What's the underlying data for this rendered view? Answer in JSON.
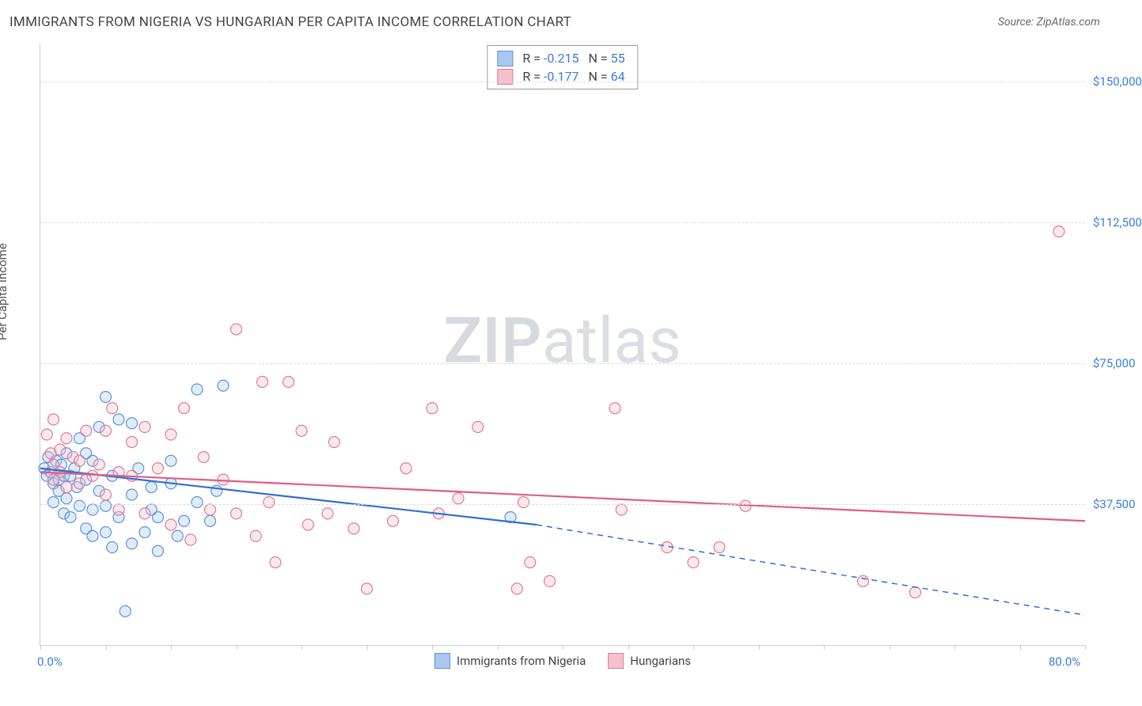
{
  "title": "IMMIGRANTS FROM NIGERIA VS HUNGARIAN PER CAPITA INCOME CORRELATION CHART",
  "source_prefix": "Source: ",
  "source_name": "ZipAtlas.com",
  "y_axis_title": "Per Capita Income",
  "watermark_zip": "ZIP",
  "watermark_atlas": "atlas",
  "chart": {
    "type": "scatter",
    "xlim": [
      0,
      80
    ],
    "ylim": [
      0,
      160000
    ],
    "x_axis_labels": [
      {
        "value": 0,
        "label": "0.0%"
      },
      {
        "value": 80,
        "label": "80.0%"
      }
    ],
    "x_ticks_every": 5,
    "y_gridlines": [
      {
        "value": 37500,
        "label": "$37,500"
      },
      {
        "value": 75000,
        "label": "$75,000"
      },
      {
        "value": 112500,
        "label": "$112,500"
      },
      {
        "value": 150000,
        "label": "$150,000"
      }
    ],
    "marker_radius": 7,
    "marker_stroke_width": 1.2,
    "marker_fill_opacity": 0.35,
    "line_width": 2.2,
    "series": [
      {
        "id": "nigeria",
        "name": "Immigrants from Nigeria",
        "color_fill": "#a9c8ef",
        "color_stroke": "#5a94df",
        "line_color": "#2f6fd0",
        "legend_r_label": "R = ",
        "r_value": "-0.215",
        "legend_n_label": "N = ",
        "n_value": "55",
        "trend": {
          "start": {
            "x": 0,
            "y": 47000
          },
          "solid_end": {
            "x": 38,
            "y": 32000
          },
          "dashed_end": {
            "x": 80,
            "y": 8000
          }
        },
        "points": [
          {
            "x": 0.3,
            "y": 47000
          },
          {
            "x": 0.5,
            "y": 45000
          },
          {
            "x": 0.6,
            "y": 50000
          },
          {
            "x": 0.8,
            "y": 46000
          },
          {
            "x": 1.0,
            "y": 43000
          },
          {
            "x": 1.0,
            "y": 38000
          },
          {
            "x": 1.2,
            "y": 49000
          },
          {
            "x": 1.4,
            "y": 44000
          },
          {
            "x": 1.4,
            "y": 41000
          },
          {
            "x": 1.6,
            "y": 48000
          },
          {
            "x": 1.8,
            "y": 45000
          },
          {
            "x": 1.8,
            "y": 35000
          },
          {
            "x": 2.0,
            "y": 51000
          },
          {
            "x": 2.0,
            "y": 39000
          },
          {
            "x": 2.3,
            "y": 45000
          },
          {
            "x": 2.3,
            "y": 34000
          },
          {
            "x": 2.6,
            "y": 47000
          },
          {
            "x": 2.8,
            "y": 42000
          },
          {
            "x": 3.0,
            "y": 55000
          },
          {
            "x": 3.0,
            "y": 37000
          },
          {
            "x": 3.5,
            "y": 44000
          },
          {
            "x": 3.5,
            "y": 31000
          },
          {
            "x": 4.0,
            "y": 49000
          },
          {
            "x": 4.0,
            "y": 36000
          },
          {
            "x": 4.0,
            "y": 29000
          },
          {
            "x": 4.5,
            "y": 58000
          },
          {
            "x": 4.5,
            "y": 41000
          },
          {
            "x": 5.0,
            "y": 66000
          },
          {
            "x": 5.0,
            "y": 37000
          },
          {
            "x": 5.0,
            "y": 30000
          },
          {
            "x": 5.5,
            "y": 45000
          },
          {
            "x": 5.5,
            "y": 26000
          },
          {
            "x": 6.0,
            "y": 60000
          },
          {
            "x": 6.0,
            "y": 34000
          },
          {
            "x": 6.5,
            "y": 9000
          },
          {
            "x": 7.0,
            "y": 40000
          },
          {
            "x": 7.0,
            "y": 27000
          },
          {
            "x": 7.5,
            "y": 47000
          },
          {
            "x": 8.0,
            "y": 30000
          },
          {
            "x": 8.5,
            "y": 42000
          },
          {
            "x": 9.0,
            "y": 34000
          },
          {
            "x": 9.0,
            "y": 25000
          },
          {
            "x": 10.0,
            "y": 49000
          },
          {
            "x": 10.5,
            "y": 29000
          },
          {
            "x": 11.0,
            "y": 33000
          },
          {
            "x": 12.0,
            "y": 68000
          },
          {
            "x": 12.0,
            "y": 38000
          },
          {
            "x": 13.0,
            "y": 33000
          },
          {
            "x": 13.5,
            "y": 41000
          },
          {
            "x": 14.0,
            "y": 69000
          },
          {
            "x": 7.0,
            "y": 59000
          },
          {
            "x": 3.5,
            "y": 51000
          },
          {
            "x": 36.0,
            "y": 34000
          },
          {
            "x": 8.5,
            "y": 36000
          },
          {
            "x": 10.0,
            "y": 43000
          }
        ]
      },
      {
        "id": "hungarians",
        "name": "Hungarians",
        "color_fill": "#f4c0cc",
        "color_stroke": "#e47a97",
        "line_color": "#e05c84",
        "legend_r_label": "R = ",
        "r_value": "-0.177",
        "legend_n_label": "N = ",
        "n_value": "64",
        "trend": {
          "start": {
            "x": 0,
            "y": 46000
          },
          "solid_end": {
            "x": 80,
            "y": 33000
          },
          "dashed_end": null
        },
        "points": [
          {
            "x": 0.5,
            "y": 56000
          },
          {
            "x": 0.8,
            "y": 51000
          },
          {
            "x": 1.0,
            "y": 60000
          },
          {
            "x": 1.0,
            "y": 48000
          },
          {
            "x": 1.5,
            "y": 52000
          },
          {
            "x": 2.0,
            "y": 55000
          },
          {
            "x": 2.0,
            "y": 42000
          },
          {
            "x": 1.5,
            "y": 46000
          },
          {
            "x": 2.5,
            "y": 50000
          },
          {
            "x": 3.0,
            "y": 49000
          },
          {
            "x": 3.0,
            "y": 43000
          },
          {
            "x": 3.5,
            "y": 57000
          },
          {
            "x": 4.0,
            "y": 45000
          },
          {
            "x": 4.5,
            "y": 48000
          },
          {
            "x": 5.0,
            "y": 57000
          },
          {
            "x": 5.0,
            "y": 40000
          },
          {
            "x": 5.5,
            "y": 63000
          },
          {
            "x": 6.0,
            "y": 46000
          },
          {
            "x": 6.0,
            "y": 36000
          },
          {
            "x": 7.0,
            "y": 54000
          },
          {
            "x": 7.0,
            "y": 45000
          },
          {
            "x": 8.0,
            "y": 58000
          },
          {
            "x": 8.0,
            "y": 35000
          },
          {
            "x": 9.0,
            "y": 47000
          },
          {
            "x": 10.0,
            "y": 56000
          },
          {
            "x": 10.0,
            "y": 32000
          },
          {
            "x": 11.0,
            "y": 63000
          },
          {
            "x": 11.5,
            "y": 28000
          },
          {
            "x": 12.5,
            "y": 50000
          },
          {
            "x": 13.0,
            "y": 36000
          },
          {
            "x": 14.0,
            "y": 44000
          },
          {
            "x": 15.0,
            "y": 84000
          },
          {
            "x": 15.0,
            "y": 35000
          },
          {
            "x": 16.5,
            "y": 29000
          },
          {
            "x": 17.0,
            "y": 70000
          },
          {
            "x": 17.5,
            "y": 38000
          },
          {
            "x": 18.0,
            "y": 22000
          },
          {
            "x": 19.0,
            "y": 70000
          },
          {
            "x": 20.0,
            "y": 57000
          },
          {
            "x": 20.5,
            "y": 32000
          },
          {
            "x": 22.0,
            "y": 35000
          },
          {
            "x": 22.5,
            "y": 54000
          },
          {
            "x": 24.0,
            "y": 31000
          },
          {
            "x": 25.0,
            "y": 15000
          },
          {
            "x": 27.0,
            "y": 33000
          },
          {
            "x": 28.0,
            "y": 47000
          },
          {
            "x": 30.0,
            "y": 63000
          },
          {
            "x": 30.5,
            "y": 35000
          },
          {
            "x": 32.0,
            "y": 39000
          },
          {
            "x": 33.5,
            "y": 58000
          },
          {
            "x": 36.5,
            "y": 15000
          },
          {
            "x": 37.0,
            "y": 38000
          },
          {
            "x": 37.5,
            "y": 22000
          },
          {
            "x": 39.0,
            "y": 17000
          },
          {
            "x": 44.0,
            "y": 63000
          },
          {
            "x": 44.5,
            "y": 36000
          },
          {
            "x": 48.0,
            "y": 26000
          },
          {
            "x": 50.0,
            "y": 22000
          },
          {
            "x": 52.0,
            "y": 26000
          },
          {
            "x": 54.0,
            "y": 37000
          },
          {
            "x": 63.0,
            "y": 17000
          },
          {
            "x": 67.0,
            "y": 14000
          },
          {
            "x": 78.0,
            "y": 110000
          },
          {
            "x": 1.0,
            "y": 44000
          }
        ]
      }
    ]
  }
}
